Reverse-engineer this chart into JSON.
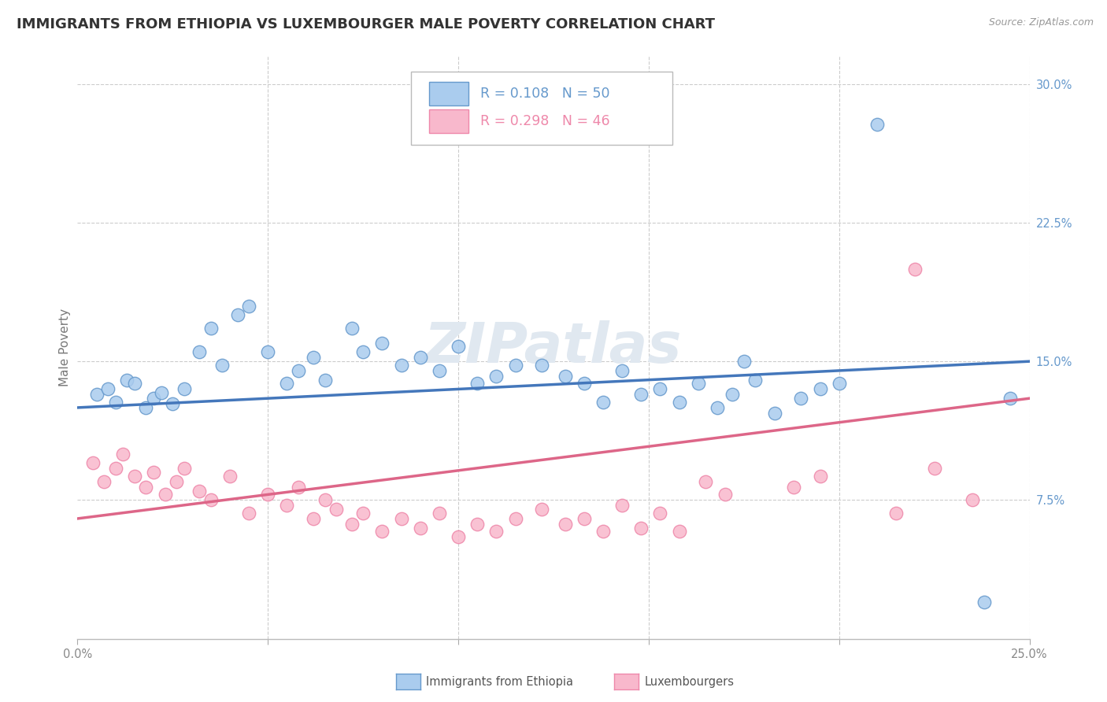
{
  "title": "IMMIGRANTS FROM ETHIOPIA VS LUXEMBOURGER MALE POVERTY CORRELATION CHART",
  "source": "Source: ZipAtlas.com",
  "ylabel": "Male Poverty",
  "legend_label1": "Immigrants from Ethiopia",
  "legend_label2": "Luxembourgers",
  "r1": "0.108",
  "n1": "50",
  "r2": "0.298",
  "n2": "46",
  "color1": "#aaccee",
  "color2": "#f8b8cc",
  "edge_color1": "#6699cc",
  "edge_color2": "#ee88aa",
  "line_color1": "#4477bb",
  "line_color2": "#dd6688",
  "bg_color": "#ffffff",
  "grid_color": "#cccccc",
  "watermark": "ZIPatlas",
  "title_fontsize": 13,
  "tick_fontsize": 10.5,
  "ylabel_fontsize": 11,
  "xlim": [
    0.0,
    0.25
  ],
  "ylim": [
    0.0,
    0.315
  ]
}
